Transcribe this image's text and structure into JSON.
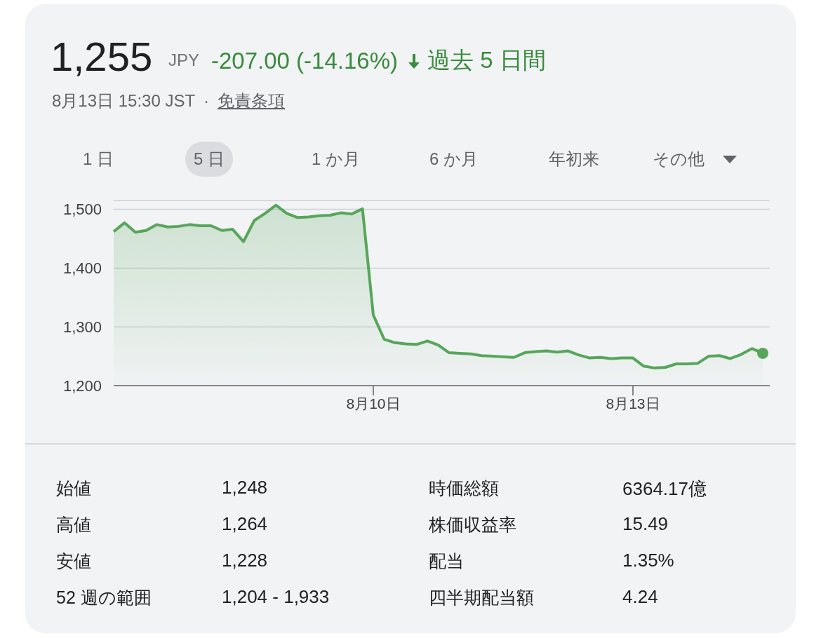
{
  "chart_data": [
    {
      "type": "area",
      "title": "1,255",
      "annotations": [
        "JPY",
        "-207.00 (-14.16%)",
        "過去 5 日間",
        "8月13日 15:30 JST",
        "·",
        "免責条項",
        "1 日",
        "5 日",
        "1 か月",
        "6 か月",
        "年初来",
        "その他"
      ],
      "categories": [
        null,
        null,
        null,
        null,
        null,
        null,
        null,
        null,
        null,
        null,
        null,
        null,
        null,
        null,
        null,
        null,
        null,
        null,
        null,
        null,
        null,
        null,
        null,
        null,
        "8月10日",
        null,
        null,
        null,
        null,
        null,
        null,
        null,
        null,
        null,
        null,
        null,
        null,
        null,
        null,
        null,
        null,
        null,
        null,
        null,
        null,
        null,
        null,
        null,
        "8月13日",
        null,
        null,
        null,
        null,
        null,
        null,
        null,
        null,
        null,
        null,
        null,
        null
      ],
      "values": [
        1462,
        1477,
        1461,
        1464,
        1474,
        1470,
        1471,
        1474,
        1472,
        1472,
        1464,
        1466,
        1445,
        1481,
        1493,
        1507,
        1493,
        1486,
        1487,
        1489,
        1490,
        1494,
        1492,
        1501,
        1320,
        1279,
        1273,
        1271,
        1270,
        1276,
        1269,
        1256,
        1255,
        1254,
        1251,
        1250,
        1249,
        1248,
        1256,
        1258,
        1259,
        1257,
        1259,
        1252,
        1247,
        1248,
        1246,
        1247,
        1247,
        1233,
        1230,
        1231,
        1237,
        1237,
        1238,
        1250,
        1251,
        1246,
        1253,
        1263,
        1255
      ],
      "color": "#57a65b",
      "ylim": [
        1200,
        1515
      ],
      "yticks": [
        {
          "value": 1200,
          "label": "1,200"
        },
        {
          "value": 1300,
          "label": "1,300"
        },
        {
          "value": 1400,
          "label": "1,400"
        },
        {
          "value": 1500,
          "label": "1,500"
        }
      ],
      "grid": "y",
      "legend": false
    },
    {
      "type": "other",
      "annotations": [
        "始値",
        "1,248",
        "高値",
        "1,264",
        "安値",
        "1,228",
        "52 週の範囲",
        "1,204 - 1,933",
        "時価総額",
        "6364.17億",
        "株価収益率",
        "15.49",
        "配当",
        "1.35%",
        "四半期配当額",
        "4.24"
      ]
    }
  ]
}
